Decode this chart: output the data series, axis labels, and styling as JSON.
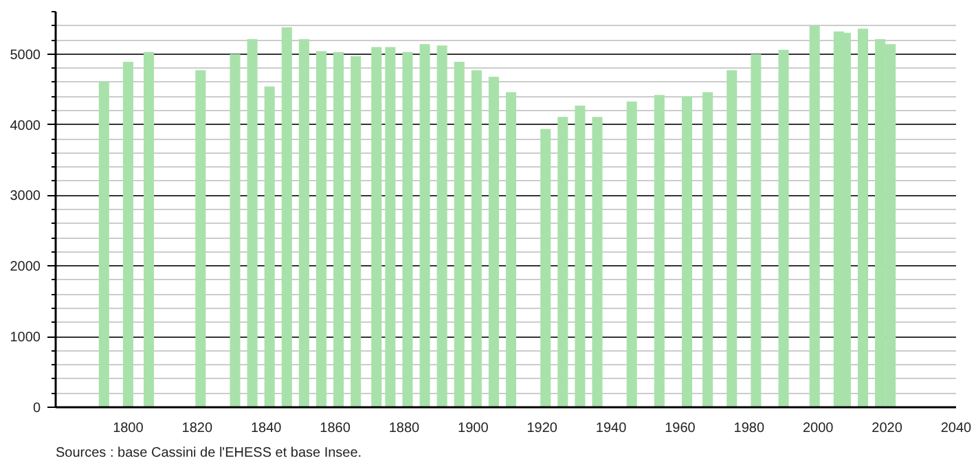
{
  "chart_data": {
    "type": "bar",
    "x": [
      1793,
      1800,
      1806,
      1821,
      1831,
      1836,
      1841,
      1846,
      1851,
      1856,
      1861,
      1866,
      1872,
      1876,
      1881,
      1886,
      1891,
      1896,
      1901,
      1906,
      1911,
      1921,
      1926,
      1931,
      1936,
      1946,
      1954,
      1962,
      1968,
      1975,
      1982,
      1990,
      1999,
      2006,
      2008,
      2013,
      2018,
      2021
    ],
    "values": [
      4610,
      4890,
      5030,
      4770,
      5000,
      5210,
      4540,
      5380,
      5210,
      5040,
      5030,
      4970,
      5100,
      5100,
      5030,
      5140,
      5120,
      4890,
      4770,
      4680,
      4460,
      3940,
      4110,
      4270,
      4110,
      4330,
      4420,
      4400,
      4460,
      4770,
      5000,
      5060,
      5400,
      5320,
      5300,
      5360,
      5210,
      5140
    ],
    "color": "#a8e2aa",
    "xlim": [
      1779,
      2040
    ],
    "xticks": [
      1800,
      1820,
      1840,
      1860,
      1880,
      1900,
      1920,
      1940,
      1960,
      1980,
      2000,
      2020,
      2040
    ],
    "ylim": [
      0,
      5600
    ],
    "yticks": [
      0,
      1000,
      2000,
      3000,
      4000,
      5000
    ],
    "grid": "y",
    "annotations": [
      "Sources : base Cassini de l'EHESS et base Insee."
    ]
  }
}
